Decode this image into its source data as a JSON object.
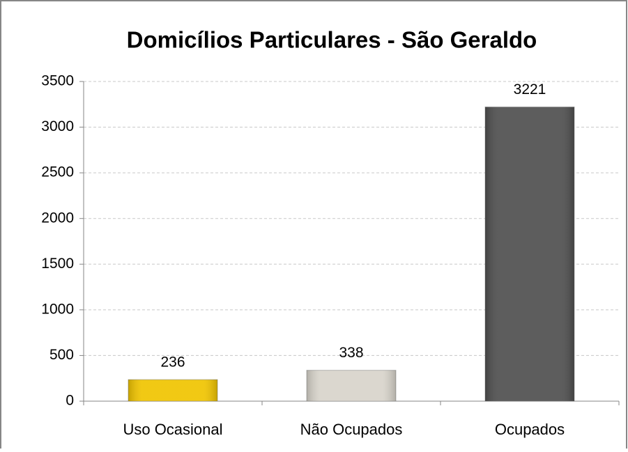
{
  "chart_data": {
    "type": "bar",
    "title": "Domicílios Particulares - São Geraldo",
    "categories": [
      "Uso Ocasional",
      "Não Ocupados",
      "Ocupados"
    ],
    "values": [
      236,
      338,
      3221
    ],
    "colors": [
      "#f0c400",
      "#d8d4cb",
      "#4f4f4f"
    ],
    "ylim": [
      0,
      3500
    ],
    "yticks": [
      0,
      500,
      1000,
      1500,
      2000,
      2500,
      3000,
      3500
    ],
    "grid": true
  }
}
